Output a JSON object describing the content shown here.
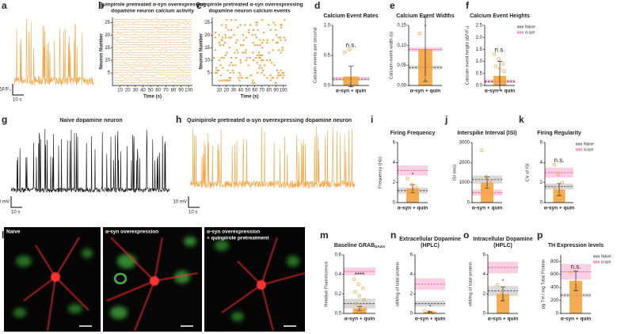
{
  "letters": [
    "a",
    "b",
    "c",
    "d",
    "e",
    "f",
    "g",
    "h",
    "i",
    "j",
    "k",
    "l",
    "m",
    "n",
    "o",
    "p"
  ],
  "trace_a": {
    "scale_y": "0.2 ΔF/F₀",
    "scale_x": "10 s"
  },
  "calcium_activity": {
    "title": [
      "Quinpirole pretreated α-syn overexpressing",
      "dopamine neuron calcium activity"
    ],
    "ylabel": "Neuron Number",
    "xlabel": "Time (s)",
    "ylim": [
      0,
      27
    ],
    "yticks": [
      5,
      10,
      15,
      20,
      25
    ],
    "xlim": [
      0,
      105
    ],
    "xticks": [
      10,
      20,
      30,
      40,
      50,
      60,
      70,
      80,
      90,
      100
    ]
  },
  "calcium_events": {
    "title": [
      "Quinpirole pretreated  α-syn overexpressing",
      "dopamine neuron calcium events"
    ],
    "ylabel": "Neuron Number",
    "xlabel": "Time (s)",
    "ylim": [
      0,
      27
    ],
    "yticks": [
      5,
      10,
      15,
      20,
      25
    ],
    "xlim": [
      0,
      105
    ],
    "xticks": [
      10,
      20,
      30,
      40,
      50,
      60,
      70,
      80,
      90,
      100
    ]
  },
  "trace_g": {
    "title": "Naive dopamine neuron",
    "scale_y": "20 mV",
    "scale_x": "10 s"
  },
  "trace_h": {
    "title": "Quinipirole pretreated α-syn overexpressing dopamine neuron",
    "scale_y": "10 mV",
    "scale_x": "10 s"
  },
  "images": [
    {
      "label": "Naive"
    },
    {
      "label": "α-syn overexpression"
    },
    {
      "label": [
        "α-syn overexpression",
        "+ quinpirole pretreatment"
      ]
    }
  ],
  "chart_data": [
    {
      "type": "bar",
      "title": "Calcium Event Rates",
      "ylabel": "Calcium events per second",
      "categories": [
        "α-syn + quin"
      ],
      "values": [
        0.15
      ],
      "errors": [
        0.17
      ],
      "points": [
        0.55,
        0.6,
        0.12,
        0.08,
        0.1
      ],
      "color": "#f4a340",
      "ylim": [
        0,
        1.0
      ],
      "yticks": [
        {
          "value": 0,
          "label": "0.0"
        },
        {
          "value": 0.5,
          "label": "0.5"
        },
        {
          "value": 1.0,
          "label": "1.0"
        }
      ],
      "annotation": "n.s.",
      "reference": [
        {
          "mean": 0.1,
          "sem": 0.02,
          "color": "#cfcfcf",
          "line_color": "#333333"
        },
        {
          "mean": 0.12,
          "sem": 0.02,
          "color": "#f7c3da",
          "line_color": "#e0489a"
        }
      ]
    },
    {
      "type": "bar",
      "title": "Calcium Event Widths",
      "ylabel": "Calcium event width (s)",
      "categories": [
        "α-syn + quin"
      ],
      "values": [
        0.09
      ],
      "errors": [
        0.08
      ],
      "points": [
        0.13,
        0.02,
        0.05
      ],
      "color": "#f4a340",
      "ylim": [
        0,
        0.15
      ],
      "yticks": [
        {
          "value": 0,
          "label": "0.00"
        },
        {
          "value": 0.05,
          "label": "0.05"
        },
        {
          "value": 0.1,
          "label": "0.10"
        },
        {
          "value": 0.15,
          "label": "0.15"
        }
      ],
      "annotation": "*",
      "reference": [
        {
          "mean": 0.045,
          "sem": 0.005,
          "color": "#cfcfcf",
          "line_color": "#333333"
        },
        {
          "mean": 0.09,
          "sem": 0.005,
          "color": "#f7c3da",
          "line_color": "#e0489a"
        }
      ]
    },
    {
      "type": "bar",
      "title": "Calcium Event Heights",
      "ylabel": "Calcium event height (ΔF/F₀)",
      "categories": [
        "α-syn + quin"
      ],
      "values": [
        0.4
      ],
      "errors": [
        0.6
      ],
      "points": [
        1.3,
        1.1,
        0.9,
        0.8,
        0.7,
        0.6
      ],
      "color": "#f4a340",
      "ylim": [
        0,
        2.5
      ],
      "yticks": [
        {
          "value": 0,
          "label": "0.0"
        },
        {
          "value": 0.5,
          "label": "0.5"
        },
        {
          "value": 1,
          "label": "1.0"
        },
        {
          "value": 1.5,
          "label": "1.5"
        },
        {
          "value": 2,
          "label": "2.0"
        },
        {
          "value": 2.5,
          "label": "2.5"
        }
      ],
      "annotation": "n.s.",
      "legend": "upper right",
      "reference": [
        {
          "name": "Naive",
          "mean": 0.15,
          "sem": 0.04,
          "color": "#cfcfcf",
          "line_color": "#333333"
        },
        {
          "name": "α-syn",
          "mean": 0.2,
          "sem": 0.04,
          "color": "#f7c3da",
          "line_color": "#e0489a"
        }
      ]
    },
    {
      "type": "bar",
      "title": "Firing Frequency",
      "ylabel": "Frequency (Hz)",
      "categories": [
        "α-syn + quin"
      ],
      "values": [
        1.4
      ],
      "errors": [
        0.4
      ],
      "points": [
        2.4,
        1.8,
        1.5,
        1.2,
        1.0,
        0.8,
        0.6
      ],
      "color": "#f4a340",
      "ylim": [
        0,
        6
      ],
      "yticks": [
        0,
        2,
        4,
        6
      ],
      "annotation": "*",
      "reference": [
        {
          "mean": 1.2,
          "sem": 0.3,
          "color": "#cfcfcf",
          "line_color": "#333333"
        },
        {
          "mean": 3.2,
          "sem": 0.5,
          "color": "#f7c3da",
          "line_color": "#e0489a"
        }
      ]
    },
    {
      "type": "bar",
      "title": "Interspike Interval (ISI)",
      "ylabel": "ISI (ms)",
      "categories": [
        "α-syn + quin"
      ],
      "values": [
        1000
      ],
      "errors": [
        280
      ],
      "points": [
        2600,
        1300,
        1100,
        900,
        700,
        400
      ],
      "color": "#f4a340",
      "ylim": [
        0,
        3000
      ],
      "yticks": [
        0,
        1000,
        2000,
        3000
      ],
      "reference": [
        {
          "mean": 1150,
          "sem": 200,
          "color": "#cfcfcf",
          "line_color": "#333333"
        },
        {
          "mean": 500,
          "sem": 150,
          "color": "#f7c3da",
          "line_color": "#e0489a"
        }
      ]
    },
    {
      "type": "bar",
      "title": "Firing Regularity",
      "ylabel": "CV of ISI",
      "categories": [
        "α-syn + quin"
      ],
      "values": [
        1.3
      ],
      "errors": [
        0.6
      ],
      "points": [
        3.8,
        2.8,
        2.0,
        1.5,
        1.0,
        0.5
      ],
      "color": "#f4a340",
      "ylim": [
        0,
        6
      ],
      "yticks": [
        0,
        2,
        4,
        6
      ],
      "annotation": "n.s.",
      "legend": "upper right",
      "reference": [
        {
          "name": "Naive",
          "mean": 1.6,
          "sem": 0.3,
          "color": "#cfcfcf",
          "line_color": "#333333"
        },
        {
          "name": "α-syn",
          "mean": 3.0,
          "sem": 0.5,
          "color": "#f7c3da",
          "line_color": "#e0489a"
        }
      ]
    },
    {
      "type": "bar",
      "title": "Baseline GRAB",
      "title_subscript": "DA2m",
      "ylabel": "Relative Fluorescence",
      "categories": [
        "α-syn + quin"
      ],
      "values": [
        0.05
      ],
      "errors": [
        0.02
      ],
      "points": [
        0.35,
        0.3,
        0.26,
        0.22,
        0.18,
        0.14,
        0.1,
        0.07,
        0.05,
        0.03,
        0.02
      ],
      "color": "#f4a340",
      "ylim": [
        0,
        0.6
      ],
      "yticks": [
        {
          "value": 0,
          "label": "0.0"
        },
        {
          "value": 0.2,
          "label": "0.2"
        },
        {
          "value": 0.4,
          "label": "0.4"
        },
        {
          "value": 0.6,
          "label": "0.6"
        }
      ],
      "annotation": "****",
      "reference": [
        {
          "mean": 0.1,
          "sem": 0.05,
          "color": "#cfcfcf",
          "line_color": "#333333"
        },
        {
          "mean": 0.43,
          "sem": 0.04,
          "color": "#f7c3da",
          "line_color": "#e0489a"
        }
      ]
    },
    {
      "type": "bar",
      "title": [
        "Extracellular Dopamine",
        "(HPLC)"
      ],
      "ylabel": "nM/mg of total protein",
      "categories": [
        "α-syn + quin"
      ],
      "values": [
        0.15
      ],
      "errors": [
        0.05
      ],
      "points": [
        0.25,
        0.15,
        0.1
      ],
      "color": "#f4a340",
      "ylim": [
        0,
        6
      ],
      "yticks": [
        0,
        2,
        4,
        6
      ],
      "annotation": "*",
      "reference": [
        {
          "mean": 1.0,
          "sem": 0.3,
          "color": "#cfcfcf",
          "line_color": "#333333"
        },
        {
          "mean": 3.0,
          "sem": 0.6,
          "color": "#f7c3da",
          "line_color": "#e0489a"
        }
      ]
    },
    {
      "type": "bar",
      "title": [
        "Intracellular Dopamine",
        "(HPLC)"
      ],
      "ylabel": "nM/mg of total protein",
      "categories": [
        "α-syn + quin"
      ],
      "values": [
        2.0
      ],
      "errors": [
        0.7
      ],
      "points": [
        2.9,
        2.2,
        1.2,
        1.0
      ],
      "color": "#f4a340",
      "ylim": [
        0,
        6
      ],
      "yticks": [
        0,
        2,
        4,
        6
      ],
      "annotation": "*",
      "reference": [
        {
          "mean": 2.3,
          "sem": 0.5,
          "color": "#cfcfcf",
          "line_color": "#333333"
        },
        {
          "mean": 4.7,
          "sem": 0.6,
          "color": "#f7c3da",
          "line_color": "#e0489a"
        }
      ]
    },
    {
      "type": "bar",
      "title": "TH Expression levels",
      "ylabel": "pg TH / mg Total Protein",
      "categories": [
        "α-syn + quin"
      ],
      "values": [
        500
      ],
      "errors": [
        150
      ],
      "points": [
        630,
        480,
        400
      ],
      "color": "#f4a340",
      "ylim": [
        0,
        900
      ],
      "yticks": [
        0,
        200,
        400,
        600,
        800
      ],
      "annotation": "n.s.",
      "legend": "upper right",
      "reference": [
        {
          "name": "Naive",
          "mean": 280,
          "sem": 30,
          "color": "#cfcfcf",
          "line_color": "#333333"
        },
        {
          "name": "α-syn",
          "mean": 640,
          "sem": 120,
          "color": "#f7c3da",
          "line_color": "#e0489a"
        }
      ]
    }
  ]
}
